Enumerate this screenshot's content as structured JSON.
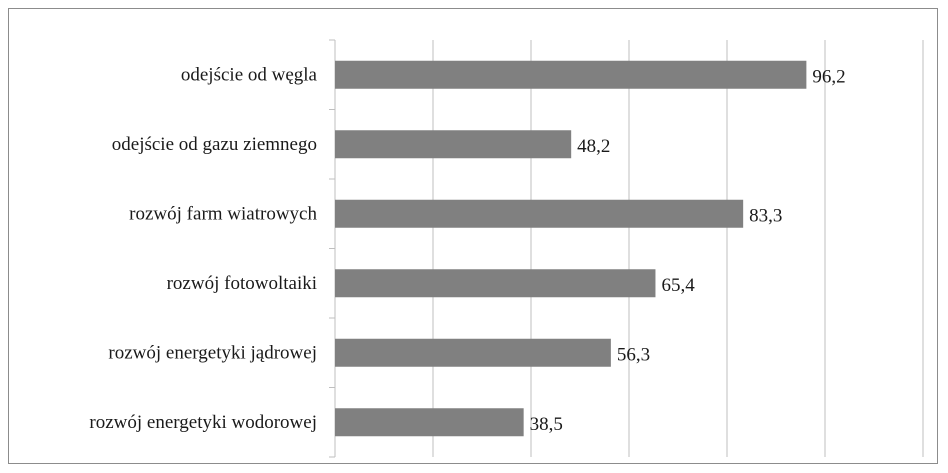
{
  "chart_data": {
    "type": "bar",
    "orientation": "horizontal",
    "categories": [
      "odejście od węgla",
      "odejście od gazu ziemnego",
      "rozwój farm wiatrowych",
      "rozwój fotowoltaiki",
      "rozwój energetyki jądrowej",
      "rozwój energetyki wodorowej"
    ],
    "values": [
      96.2,
      48.2,
      83.3,
      65.4,
      56.3,
      38.5
    ],
    "value_labels": [
      "96,2",
      "48,2",
      "83,3",
      "65,4",
      "56,3",
      "38,5"
    ],
    "xlim": [
      0,
      120
    ],
    "grid": true,
    "legend": "none",
    "bar_color": "#808080",
    "grid_color": "#bfbfbf",
    "axis_color": "#bfbfbf",
    "title": "",
    "xlabel": "",
    "ylabel": ""
  }
}
